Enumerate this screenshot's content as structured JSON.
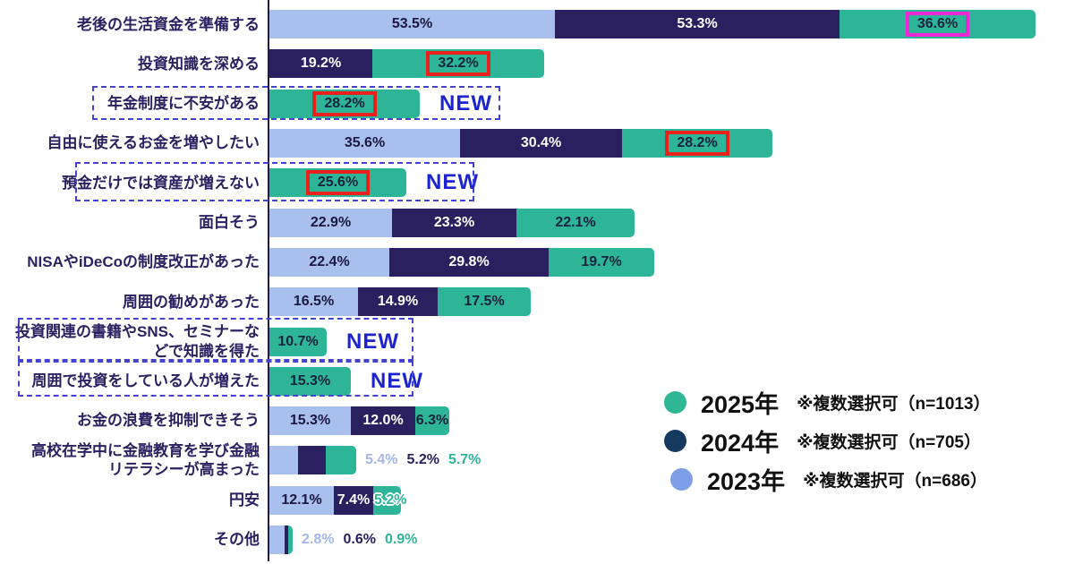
{
  "colors": {
    "bar_2023": "#a9c0ef",
    "bar_2024": "#2a2060",
    "bar_2025": "#2eb598",
    "legend_2025": "#2fb694",
    "legend_2024": "#16395f",
    "legend_2023": "#7d9fe8",
    "category_text": "#2b2161",
    "new_text": "#1c23cf",
    "red_box": "#e8211d",
    "magenta_box": "#ee28d6",
    "dashed_outline": "#4343cf"
  },
  "new_label": "NEW",
  "rows": [
    {
      "label": "老後の生活資金を準備する",
      "segments": [
        {
          "series": "y2023",
          "value": 53.5,
          "label": "53.5%"
        },
        {
          "series": "y2024",
          "value": 53.3,
          "label": "53.3%"
        },
        {
          "series": "y2025",
          "value": 36.6,
          "label": "36.6%",
          "box": "magenta"
        }
      ]
    },
    {
      "label": "投資知識を深める",
      "segments": [
        {
          "series": "y2024",
          "value": 19.2,
          "label": "19.2%"
        },
        {
          "series": "y2025",
          "value": 32.2,
          "label": "32.2%",
          "box": "red"
        }
      ]
    },
    {
      "label": "年金制度に不安がある",
      "is_new": true,
      "segments": [
        {
          "series": "y2025",
          "value": 28.2,
          "label": "28.2%",
          "box": "red"
        }
      ]
    },
    {
      "label": "自由に使えるお金を増やしたい",
      "segments": [
        {
          "series": "y2023",
          "value": 35.6,
          "label": "35.6%"
        },
        {
          "series": "y2024",
          "value": 30.4,
          "label": "30.4%"
        },
        {
          "series": "y2025",
          "value": 28.2,
          "label": "28.2%",
          "box": "red"
        }
      ]
    },
    {
      "label": "預金だけでは資産が増えない",
      "is_new": true,
      "segments": [
        {
          "series": "y2025",
          "value": 25.6,
          "label": "25.6%",
          "box": "red"
        }
      ]
    },
    {
      "label": "面白そう",
      "segments": [
        {
          "series": "y2023",
          "value": 22.9,
          "label": "22.9%"
        },
        {
          "series": "y2024",
          "value": 23.3,
          "label": "23.3%"
        },
        {
          "series": "y2025",
          "value": 22.1,
          "label": "22.1%"
        }
      ]
    },
    {
      "label": "NISAやiDeCoの制度改正があった",
      "segments": [
        {
          "series": "y2023",
          "value": 22.4,
          "label": "22.4%"
        },
        {
          "series": "y2024",
          "value": 29.8,
          "label": "29.8%"
        },
        {
          "series": "y2025",
          "value": 19.7,
          "label": "19.7%"
        }
      ]
    },
    {
      "label": "周囲の勧めがあった",
      "segments": [
        {
          "series": "y2023",
          "value": 16.5,
          "label": "16.5%"
        },
        {
          "series": "y2024",
          "value": 14.9,
          "label": "14.9%"
        },
        {
          "series": "y2025",
          "value": 17.5,
          "label": "17.5%"
        }
      ]
    },
    {
      "label": "投資関連の書籍やSNS、セミナーな\nどで知識を得た",
      "is_new": true,
      "segments": [
        {
          "series": "y2025",
          "value": 10.7,
          "label": "10.7%"
        }
      ]
    },
    {
      "label": "周囲で投資をしている人が増えた",
      "is_new": true,
      "segments": [
        {
          "series": "y2025",
          "value": 15.3,
          "label": "15.3%"
        }
      ]
    },
    {
      "label": "お金の浪費を抑制できそう",
      "segments": [
        {
          "series": "y2023",
          "value": 15.3,
          "label": "15.3%"
        },
        {
          "series": "y2024",
          "value": 12.0,
          "label": "12.0%"
        },
        {
          "series": "y2025",
          "value": 6.3,
          "label": "6.3%"
        }
      ]
    },
    {
      "label": "高校在学中に金融教育を学び金融\nリテラシーが高まった",
      "segments": [
        {
          "series": "y2023",
          "value": 5.4
        },
        {
          "series": "y2024",
          "value": 5.2
        },
        {
          "series": "y2025",
          "value": 5.7
        }
      ],
      "outside_labels": [
        {
          "series": "y2023",
          "text": "5.4%"
        },
        {
          "series": "y2024",
          "text": "5.2%"
        },
        {
          "series": "y2025",
          "text": "5.7%"
        }
      ]
    },
    {
      "label": "円安",
      "segments": [
        {
          "series": "y2023",
          "value": 12.1,
          "label": "12.1%"
        },
        {
          "series": "y2024",
          "value": 7.4,
          "label": "7.4%"
        },
        {
          "series": "y2025",
          "value": 5.2
        }
      ],
      "outside_labels": [
        {
          "series": "y2025",
          "text": "5.2%",
          "overlap": true
        }
      ]
    },
    {
      "label": "その他",
      "segments": [
        {
          "series": "y2023",
          "value": 2.8
        },
        {
          "series": "y2024",
          "value": 0.6
        },
        {
          "series": "y2025",
          "value": 0.9
        }
      ],
      "outside_labels": [
        {
          "series": "y2023",
          "text": "2.8%"
        },
        {
          "series": "y2024",
          "text": "0.6%"
        },
        {
          "series": "y2025",
          "text": "0.9%"
        }
      ]
    }
  ],
  "legend": {
    "items": [
      {
        "year": "2025年",
        "note": "※複数選択可（n=1013）",
        "series": "legend_2025"
      },
      {
        "year": "2024年",
        "note": "※複数選択可（n=705）",
        "series": "legend_2024"
      },
      {
        "year": "2023年",
        "note": "※複数選択可（n=686）",
        "series": "legend_2023"
      }
    ]
  },
  "chart_data": {
    "type": "bar",
    "orientation": "horizontal",
    "stacked": true,
    "unit": "%",
    "title": "",
    "categories": [
      "老後の生活資金を準備する",
      "投資知識を深める",
      "年金制度に不安がある",
      "自由に使えるお金を増やしたい",
      "預金だけでは資産が増えない",
      "面白そう",
      "NISAやiDeCoの制度改正があった",
      "周囲の勧めがあった",
      "投資関連の書籍やSNS、セミナーなどで知識を得た",
      "周囲で投資をしている人が増えた",
      "お金の浪費を抑制できそう",
      "高校在学中に金融教育を学び金融リテラシーが高まった",
      "円安",
      "その他"
    ],
    "series": [
      {
        "name": "2023年",
        "n": 686,
        "values": [
          53.5,
          null,
          null,
          35.6,
          null,
          22.9,
          22.4,
          16.5,
          null,
          null,
          15.3,
          5.4,
          12.1,
          2.8
        ]
      },
      {
        "name": "2024年",
        "n": 705,
        "values": [
          53.3,
          19.2,
          null,
          30.4,
          null,
          23.3,
          29.8,
          14.9,
          null,
          null,
          12.0,
          5.2,
          7.4,
          0.6
        ]
      },
      {
        "name": "2025年",
        "n": 1013,
        "values": [
          36.6,
          32.2,
          28.2,
          28.2,
          25.6,
          22.1,
          19.7,
          17.5,
          10.7,
          15.3,
          6.3,
          5.7,
          5.2,
          0.9
        ]
      }
    ],
    "annotations": {
      "new_categories": [
        "年金制度に不安がある",
        "預金だけでは資産が増えない",
        "投資関連の書籍やSNS、セミナーなどで知識を得た",
        "周囲で投資をしている人が増えた"
      ],
      "red_boxed_values": [
        "投資知識を深める 2025年 32.2%",
        "年金制度に不安がある 2025年 28.2%",
        "自由に使えるお金を増やしたい 2025年 28.2%",
        "預金だけでは資産が増えない 2025年 25.6%"
      ],
      "magenta_boxed_values": [
        "老後の生活資金を準備する 2025年 36.6%"
      ]
    },
    "legend_position": "bottom-right",
    "xlim": [
      0,
      145
    ],
    "grid": false
  }
}
